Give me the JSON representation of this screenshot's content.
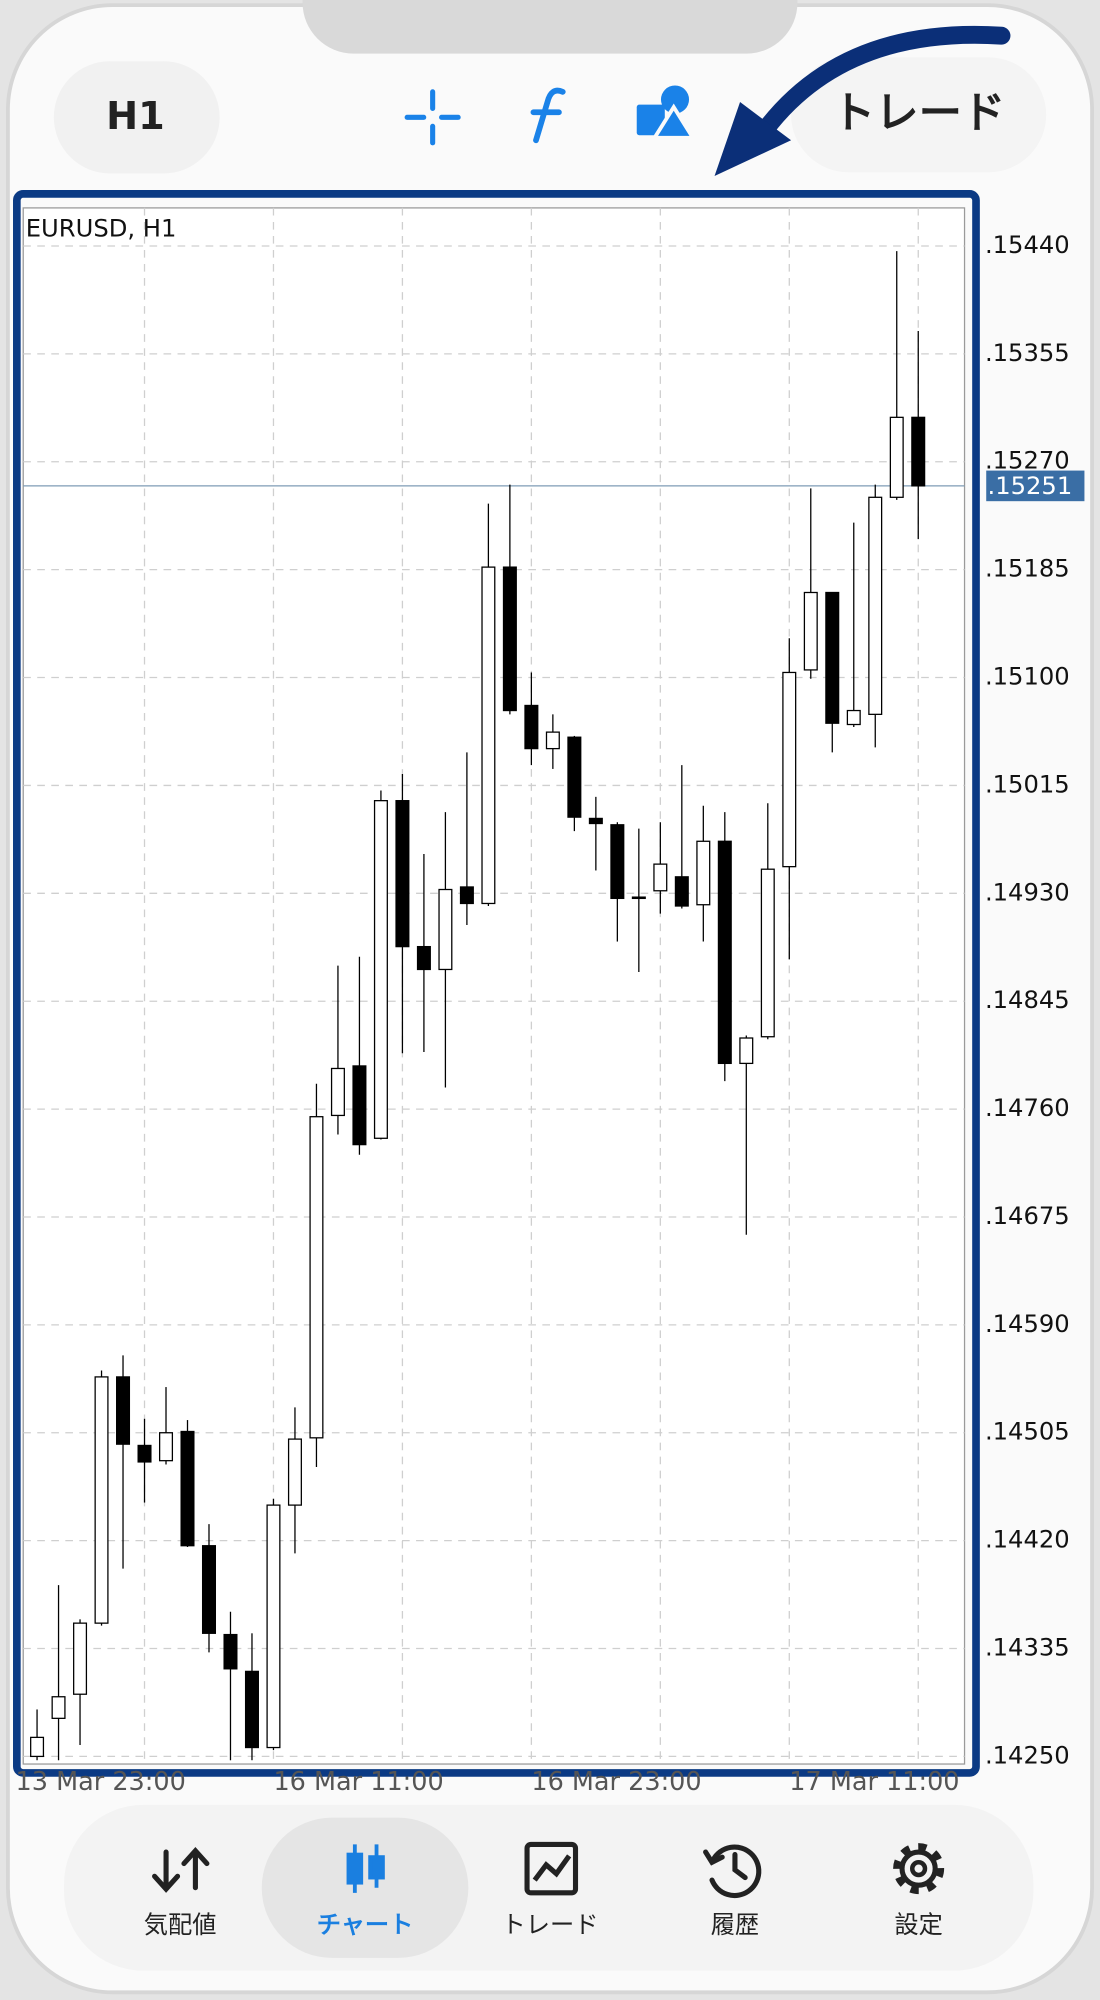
{
  "header": {
    "timeframe": "H1",
    "trade_button": "トレード"
  },
  "chart_data": {
    "type": "candlestick",
    "title": "EURUSD, H1",
    "categories": [
      "13 Mar 23:00",
      null,
      null,
      null,
      null,
      null,
      null,
      null,
      null,
      null,
      null,
      null,
      "16 Mar 11:00",
      null,
      null,
      null,
      null,
      null,
      null,
      null,
      null,
      null,
      null,
      null,
      "16 Mar 23:00",
      null,
      null,
      null,
      null,
      null,
      null,
      null,
      null,
      null,
      null,
      null,
      "17 Mar 11:00",
      null,
      null,
      null,
      null,
      null,
      null
    ],
    "open": [
      null,
      0.1425,
      0.1428,
      0.14299,
      0.14355,
      0.14549,
      0.14495,
      0.14483,
      0.14506,
      0.14416,
      0.14346,
      0.14317,
      0.14257,
      0.14448,
      0.14501,
      0.14755,
      0.14794,
      0.14737,
      0.15003,
      0.14888,
      0.1487,
      0.14935,
      0.14922,
      0.15187,
      0.15078,
      0.15044,
      0.15053,
      0.14989,
      0.14984,
      0.14927,
      0.14932,
      0.14943,
      0.14921,
      0.14971,
      0.14796,
      0.14817,
      0.14951,
      0.15106,
      0.15167,
      0.15063,
      0.15071,
      0.15242,
      0.15305
    ],
    "high": [
      null,
      0.14287,
      0.14385,
      0.14358,
      0.14554,
      0.14566,
      0.14516,
      0.14541,
      0.14515,
      0.14433,
      0.14364,
      0.14347,
      0.14453,
      0.14525,
      0.1478,
      0.14873,
      0.1488,
      0.15011,
      0.15024,
      0.14961,
      0.14994,
      0.15041,
      0.15237,
      0.15252,
      0.15104,
      0.15071,
      0.15054,
      0.15006,
      0.14986,
      0.14981,
      0.14986,
      0.15031,
      0.14999,
      0.14994,
      0.14818,
      0.15001,
      0.15131,
      0.15249,
      0.15167,
      0.15222,
      0.15252,
      0.15436,
      0.15373
    ],
    "low": [
      null,
      0.14247,
      0.14247,
      0.14259,
      0.14353,
      0.14398,
      0.1445,
      0.1448,
      0.14415,
      0.14332,
      0.14247,
      0.14247,
      0.14255,
      0.1441,
      0.14478,
      0.1474,
      0.14724,
      0.14736,
      0.14804,
      0.14805,
      0.14777,
      0.14905,
      0.1492,
      0.15071,
      0.15031,
      0.15028,
      0.14979,
      0.14948,
      0.14892,
      0.14868,
      0.14914,
      0.14918,
      0.14892,
      0.14782,
      0.14661,
      0.14815,
      0.14878,
      0.15099,
      0.15041,
      0.15061,
      0.15045,
      0.1524,
      0.15209
    ],
    "close": [
      null,
      0.14265,
      0.14297,
      0.14355,
      0.14549,
      0.14496,
      0.14482,
      0.14505,
      0.14416,
      0.14347,
      0.14319,
      0.14257,
      0.14448,
      0.145,
      0.14754,
      0.14792,
      0.14732,
      0.15003,
      0.14888,
      0.1487,
      0.14933,
      0.14922,
      0.15187,
      0.15074,
      0.15044,
      0.15057,
      0.1499,
      0.14985,
      0.14926,
      0.14927,
      0.14953,
      0.1492,
      0.14971,
      0.14796,
      0.14816,
      0.14949,
      0.15104,
      0.15167,
      0.15064,
      0.15074,
      0.15242,
      0.15305,
      0.15251
    ],
    "up_color": "#ffffff",
    "down_color": "#000000",
    "ylim": [
      0.14244,
      0.1547
    ],
    "yticks": [
      {
        "value": 0.1544,
        "label": ".15440"
      },
      {
        "value": 0.15355,
        "label": ".15355"
      },
      {
        "value": 0.1527,
        "label": ".15270"
      },
      {
        "value": 0.15185,
        "label": ".15185"
      },
      {
        "value": 0.151,
        "label": ".15100"
      },
      {
        "value": 0.15015,
        "label": ".15015"
      },
      {
        "value": 0.1493,
        "label": ".14930"
      },
      {
        "value": 0.14845,
        "label": ".14845"
      },
      {
        "value": 0.1476,
        "label": ".14760"
      },
      {
        "value": 0.14675,
        "label": ".14675"
      },
      {
        "value": 0.1459,
        "label": ".14590"
      },
      {
        "value": 0.14505,
        "label": ".14505"
      },
      {
        "value": 0.1442,
        "label": ".14420"
      },
      {
        "value": 0.14335,
        "label": ".14335"
      },
      {
        "value": 0.1425,
        "label": ".14250"
      }
    ],
    "last_price": {
      "value": 0.15251,
      "label": ".15251"
    },
    "grid": true
  },
  "nav": {
    "items": [
      "気配値",
      "チャート",
      "トレード",
      "履歴",
      "設定"
    ],
    "active": 1
  }
}
